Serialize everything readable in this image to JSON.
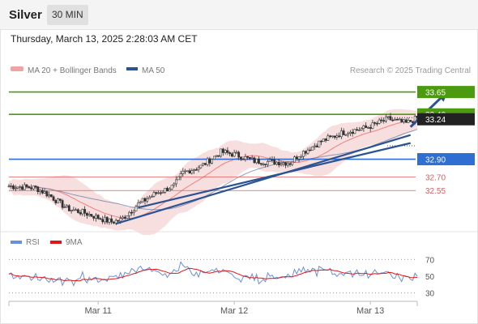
{
  "header": {
    "instrument": "Silver",
    "timeframe": "30 MIN"
  },
  "timestamp": "Thursday, March 13, 2025 2:28:03 AM CET",
  "legend": {
    "bb_label": "MA 20 + Bollinger Bands",
    "ma50_label": "MA 50",
    "rsi_label": "RSI",
    "rsi_ma_label": "9MA",
    "credit": "Research © 2025 Trading Central"
  },
  "colors": {
    "resistance": "#4c9a0f",
    "pivot": "#2f6fd1",
    "support": "#e05c5c",
    "trend": "#2a5394",
    "bb": "#f7d9d9",
    "ma20": "#ef7f7f",
    "ma50": "#5a77a0",
    "rsi": "#6a8fe0",
    "rsi_ma": "#e01616",
    "candle_up": "#444444",
    "candle_down": "#444444"
  },
  "chart_data": [
    {
      "type": "candlestick",
      "ylim": [
        32.1,
        33.8
      ],
      "x_ticks": [
        "Mar 11",
        "Mar 12",
        "Mar 13"
      ],
      "last_price": "33.24",
      "levels": [
        {
          "value": 33.65,
          "label": "33.65",
          "kind": "resistance",
          "style": "arrow-target"
        },
        {
          "value": 33.4,
          "label": "33.40",
          "kind": "resistance",
          "style": "solid"
        },
        {
          "value": 32.9,
          "label": "32.90",
          "kind": "pivot",
          "style": "solid"
        },
        {
          "value": 32.7,
          "label": "32.70",
          "kind": "support",
          "style": "thin"
        },
        {
          "value": 32.55,
          "label": "32.55",
          "kind": "support",
          "style": "thin"
        }
      ],
      "trendlines": [
        {
          "from": [
            48,
            32.18
          ],
          "to": [
            180,
            33.17
          ]
        },
        {
          "from": [
            58,
            32.36
          ],
          "to": [
            180,
            33.08
          ]
        }
      ],
      "arrow": {
        "from": [
          180,
          33.26
        ],
        "to": [
          193,
          33.65
        ]
      }
    },
    {
      "type": "line",
      "name": "RSI",
      "ylim": [
        20,
        80
      ],
      "y_ticks": [
        70,
        50,
        30
      ]
    }
  ]
}
